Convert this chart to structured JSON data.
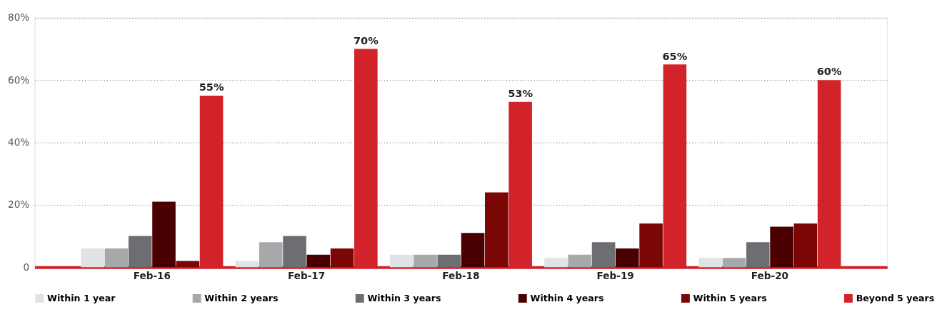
{
  "chart_data": {
    "type": "bar",
    "categories": [
      "Feb-16",
      "Feb-17",
      "Feb-18",
      "Feb-19",
      "Feb-20"
    ],
    "series": [
      {
        "name": "Within 1 year",
        "color": "#e1e2e3",
        "values": [
          6,
          2,
          4,
          3,
          3
        ]
      },
      {
        "name": "Within 2 years",
        "color": "#a7a8aa",
        "values": [
          6,
          8,
          4,
          4,
          3
        ]
      },
      {
        "name": "Within 3 years",
        "color": "#6d6e71",
        "values": [
          10,
          10,
          4,
          8,
          8
        ]
      },
      {
        "name": "Within 4 years",
        "color": "#4a0000",
        "values": [
          21,
          4,
          11,
          6,
          13
        ]
      },
      {
        "name": "Within 5 years",
        "color": "#7a0606",
        "values": [
          2,
          6,
          24,
          14,
          14
        ]
      },
      {
        "name": "Beyond 5 years",
        "color": "#d2232a",
        "values": [
          55,
          70,
          53,
          65,
          60
        ],
        "value_labels": [
          "55%",
          "70%",
          "53%",
          "65%",
          "60%"
        ]
      }
    ],
    "ylim": [
      0,
      80
    ],
    "yticks": [
      0,
      {
        "value": 20,
        "label": "20%"
      },
      {
        "value": 40,
        "label": "40%"
      },
      {
        "value": 60,
        "label": "60%"
      },
      {
        "value": 80,
        "label": "80%"
      }
    ],
    "grid": "y",
    "legend": "bottom"
  }
}
